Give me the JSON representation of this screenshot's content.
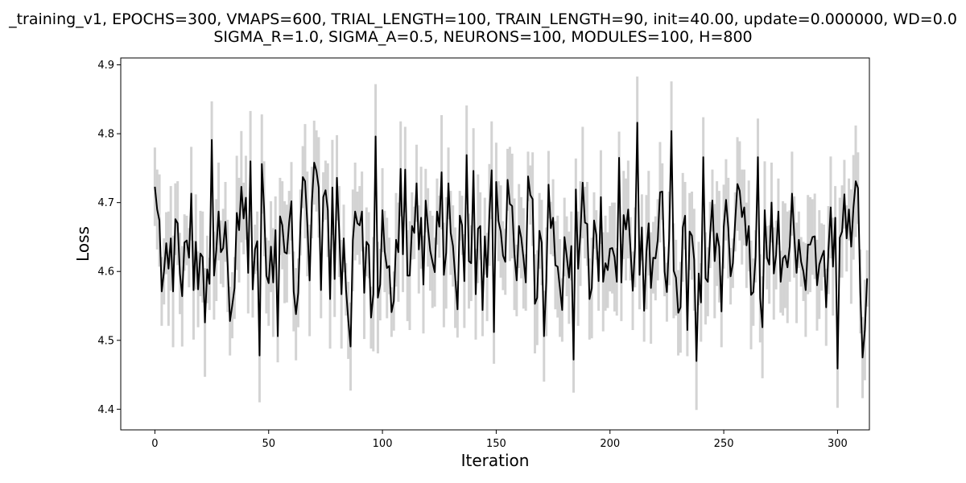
{
  "chart_data": {
    "type": "line",
    "title_line1": "_training_v1, EPOCHS=300, VMAPS=600, TRIAL_LENGTH=100, TRAIN_LENGTH=90, init=40.00, update=0.000000, WD=0.0",
    "title_line2": "SIGMA_R=1.0, SIGMA_A=0.5, NEURONS=100, MODULES=100, H=800",
    "xlabel": "Iteration",
    "ylabel": "Loss",
    "xlim": [
      -15,
      314
    ],
    "ylim": [
      4.37,
      4.91
    ],
    "xticks": [
      0,
      50,
      100,
      150,
      200,
      250,
      300
    ],
    "yticks": [
      4.4,
      4.5,
      4.6,
      4.7,
      4.8,
      4.9
    ],
    "ytick_labels": [
      "4.4",
      "4.5",
      "4.6",
      "4.7",
      "4.8",
      "4.9"
    ],
    "grid": false,
    "colors": {
      "mean_line": "#000000",
      "error_bars": "#d3d3d3"
    },
    "series": [
      {
        "x_start": 0,
        "values": [
          4.723,
          4.69,
          4.674,
          4.571,
          4.6,
          4.641,
          4.604,
          4.648,
          4.571,
          4.676,
          4.67,
          4.597,
          4.564,
          4.642,
          4.645,
          4.62,
          4.713,
          4.573,
          4.643,
          4.574,
          4.626,
          4.621,
          4.526,
          4.603,
          4.582,
          4.791,
          4.594,
          4.631,
          4.687,
          4.628,
          4.634,
          4.672,
          4.608,
          4.528,
          4.551,
          4.576,
          4.685,
          4.66,
          4.723,
          4.677,
          4.707,
          4.598,
          4.76,
          4.574,
          4.632,
          4.644,
          4.478,
          4.756,
          4.691,
          4.594,
          4.583,
          4.636,
          4.584,
          4.66,
          4.506,
          4.68,
          4.667,
          4.628,
          4.626,
          4.671,
          4.702,
          4.571,
          4.538,
          4.569,
          4.671,
          4.737,
          4.731,
          4.669,
          4.587,
          4.7,
          4.758,
          4.746,
          4.722,
          4.573,
          4.708,
          4.718,
          4.689,
          4.56,
          4.722,
          4.589,
          4.736,
          4.658,
          4.567,
          4.648,
          4.574,
          4.529,
          4.491,
          4.645,
          4.687,
          4.67,
          4.667,
          4.687,
          4.569,
          4.643,
          4.638,
          4.533,
          4.567,
          4.796,
          4.562,
          4.581,
          4.689,
          4.629,
          4.605,
          4.608,
          4.541,
          4.557,
          4.646,
          4.628,
          4.749,
          4.625,
          4.748,
          4.594,
          4.594,
          4.666,
          4.656,
          4.728,
          4.632,
          4.678,
          4.581,
          4.703,
          4.664,
          4.63,
          4.614,
          4.599,
          4.687,
          4.665,
          4.744,
          4.595,
          4.627,
          4.728,
          4.656,
          4.637,
          4.591,
          4.545,
          4.681,
          4.667,
          4.586,
          4.769,
          4.615,
          4.612,
          4.746,
          4.567,
          4.662,
          4.666,
          4.544,
          4.651,
          4.592,
          4.682,
          4.747,
          4.512,
          4.73,
          4.673,
          4.658,
          4.623,
          4.614,
          4.733,
          4.698,
          4.695,
          4.625,
          4.587,
          4.666,
          4.649,
          4.619,
          4.584,
          4.738,
          4.711,
          4.705,
          4.553,
          4.562,
          4.659,
          4.642,
          4.506,
          4.585,
          4.726,
          4.663,
          4.678,
          4.609,
          4.607,
          4.576,
          4.544,
          4.65,
          4.622,
          4.591,
          4.637,
          4.472,
          4.719,
          4.604,
          4.655,
          4.729,
          4.671,
          4.669,
          4.56,
          4.576,
          4.674,
          4.653,
          4.586,
          4.708,
          4.585,
          4.612,
          4.602,
          4.633,
          4.634,
          4.621,
          4.585,
          4.765,
          4.584,
          4.682,
          4.661,
          4.69,
          4.633,
          4.572,
          4.635,
          4.816,
          4.595,
          4.664,
          4.543,
          4.628,
          4.67,
          4.576,
          4.62,
          4.619,
          4.646,
          4.715,
          4.716,
          4.6,
          4.57,
          4.648,
          4.804,
          4.601,
          4.591,
          4.54,
          4.548,
          4.664,
          4.681,
          4.515,
          4.658,
          4.652,
          4.617,
          4.47,
          4.597,
          4.555,
          4.766,
          4.59,
          4.585,
          4.653,
          4.703,
          4.615,
          4.655,
          4.636,
          4.542,
          4.665,
          4.704,
          4.663,
          4.593,
          4.612,
          4.672,
          4.727,
          4.717,
          4.679,
          4.693,
          4.638,
          4.666,
          4.566,
          4.57,
          4.622,
          4.766,
          4.561,
          4.519,
          4.689,
          4.62,
          4.61,
          4.7,
          4.597,
          4.624,
          4.687,
          4.585,
          4.619,
          4.623,
          4.606,
          4.637,
          4.713,
          4.65,
          4.598,
          4.646,
          4.614,
          4.6,
          4.573,
          4.639,
          4.639,
          4.65,
          4.651,
          4.58,
          4.61,
          4.621,
          4.63,
          4.548,
          4.631,
          4.693,
          4.607,
          4.678,
          4.459,
          4.649,
          4.658,
          4.712,
          4.648,
          4.69,
          4.636,
          4.693,
          4.731,
          4.721,
          4.571,
          4.475,
          4.515,
          4.59
        ]
      }
    ],
    "error_bar_halfwidth_pattern": [
      0.066,
      0.048,
      0.072,
      0.057,
      0.041,
      0.064,
      0.052,
      0.079,
      0.045,
      0.069,
      0.058,
      0.036,
      0.074,
      0.061,
      0.049,
      0.083,
      0.055,
      0.067,
      0.043,
      0.071,
      0.059,
      0.038,
      0.076,
      0.062,
      0.05,
      0.068,
      0.046,
      0.073,
      0.056,
      0.081
    ]
  }
}
